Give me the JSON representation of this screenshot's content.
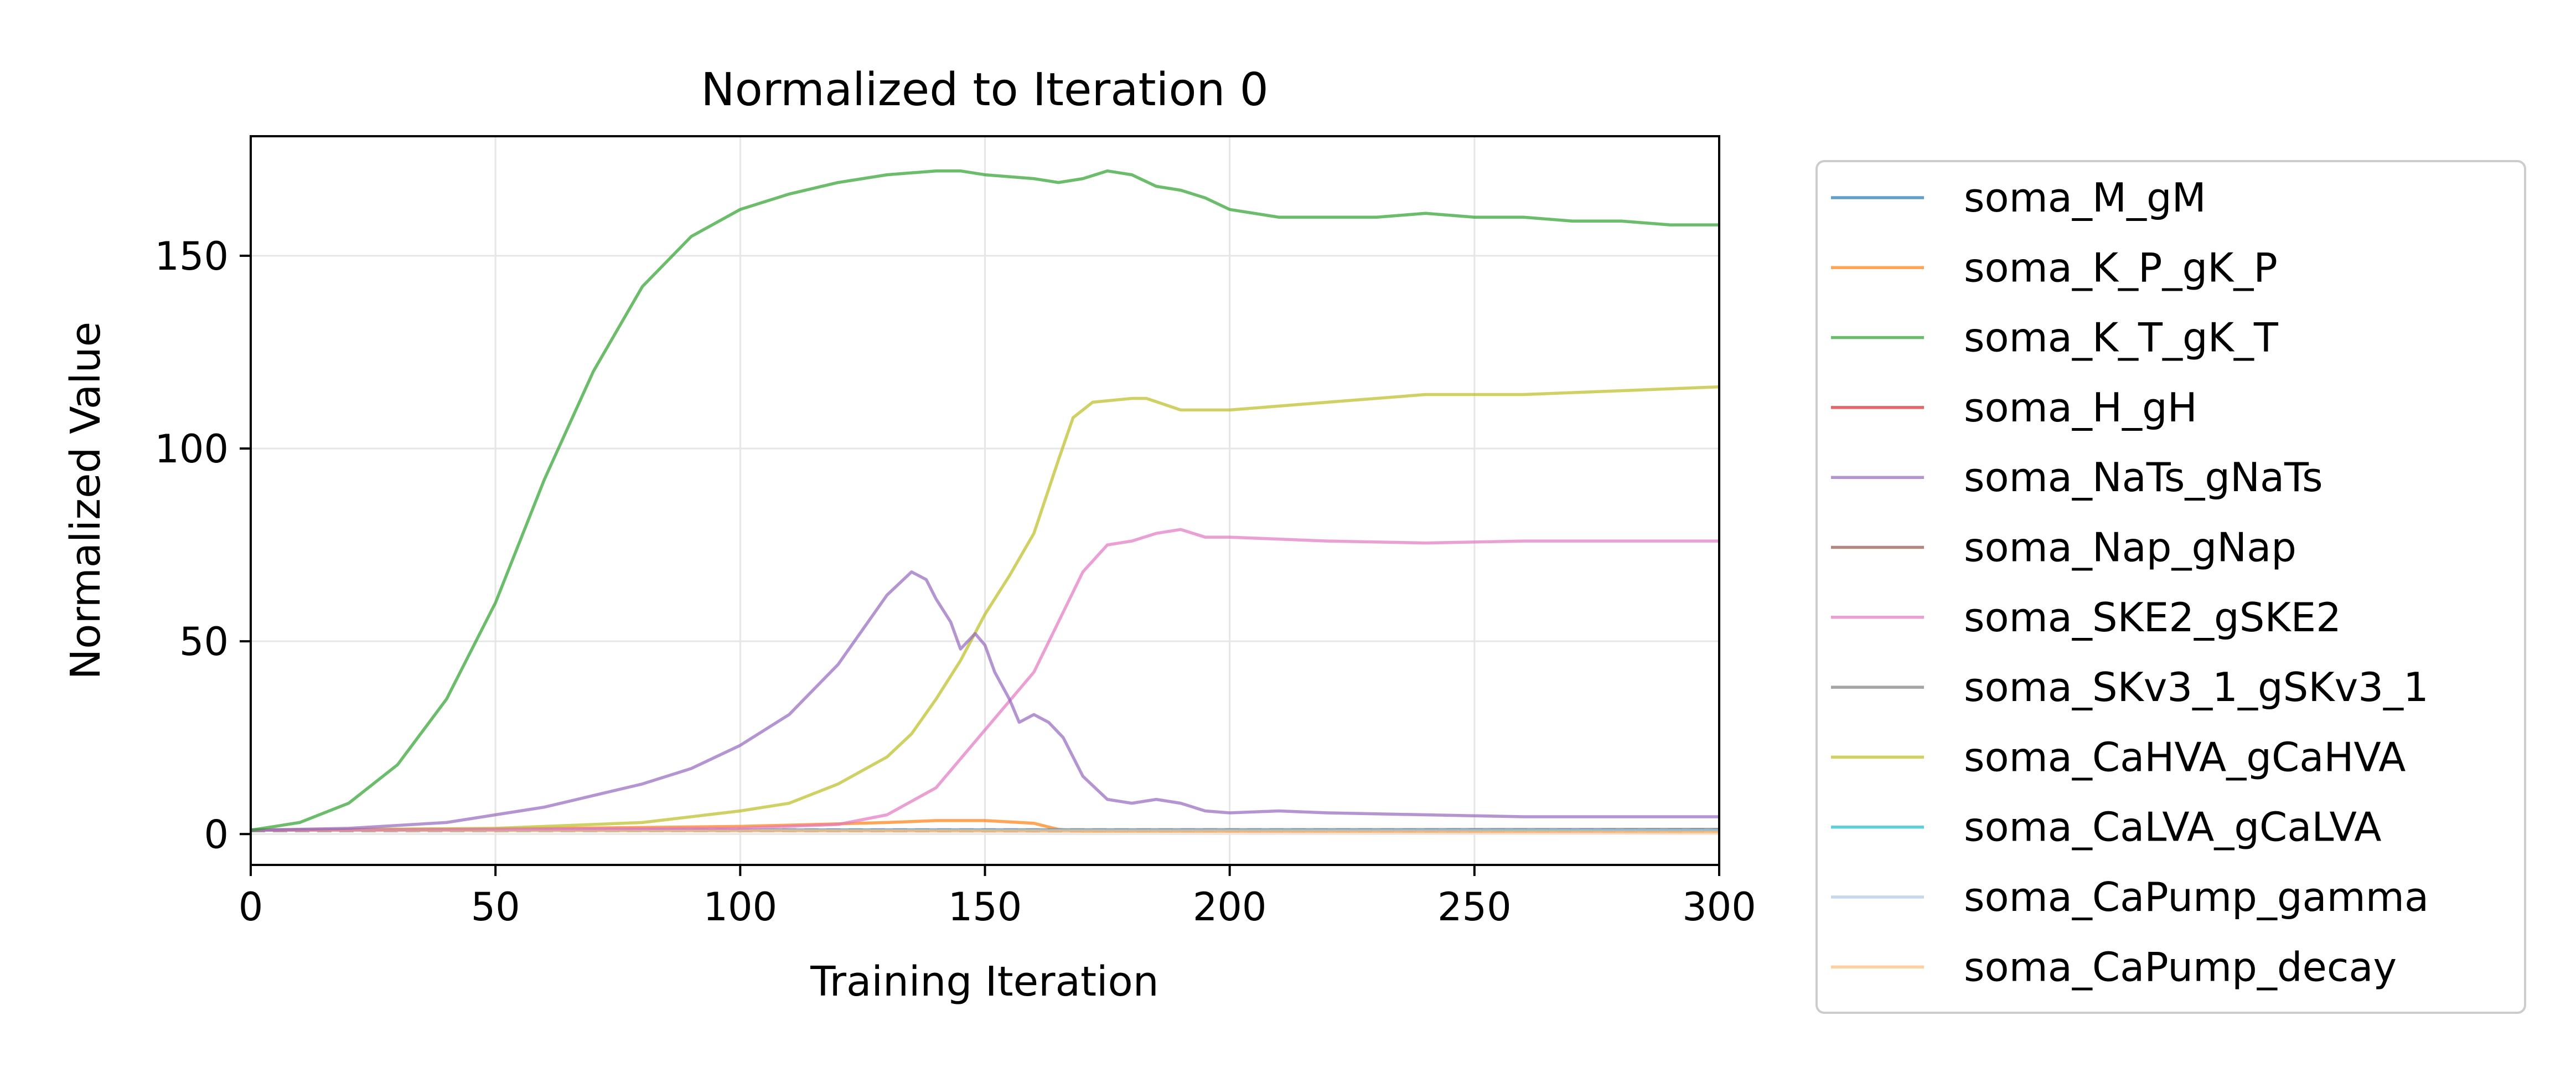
{
  "chart_data": {
    "type": "line",
    "title": "Normalized to Iteration 0",
    "xlabel": "Training Iteration",
    "ylabel": "Normalized Value",
    "xlim": [
      0,
      300
    ],
    "ylim": [
      -8,
      181
    ],
    "x_ticks": [
      0,
      50,
      100,
      150,
      200,
      250,
      300
    ],
    "y_ticks": [
      0,
      50,
      100,
      150
    ],
    "grid": true,
    "legend_position": "outside-right",
    "reference_line": {
      "y": 1,
      "style": "dashed",
      "color": "#808080"
    },
    "series": [
      {
        "name": "soma_M_gM",
        "color": "#1f77b4",
        "points": [
          [
            0,
            1
          ],
          [
            300,
            1
          ]
        ]
      },
      {
        "name": "soma_K_P_gK_P",
        "color": "#ff7f0e",
        "points": [
          [
            0,
            1
          ],
          [
            50,
            1.3
          ],
          [
            100,
            2
          ],
          [
            130,
            3
          ],
          [
            140,
            3.5
          ],
          [
            150,
            3.5
          ],
          [
            160,
            2.8
          ],
          [
            165,
            1.2
          ],
          [
            170,
            0.8
          ],
          [
            200,
            0.8
          ],
          [
            300,
            0.8
          ]
        ]
      },
      {
        "name": "soma_K_T_gK_T",
        "color": "#2ca02c",
        "points": [
          [
            0,
            1
          ],
          [
            10,
            3
          ],
          [
            20,
            8
          ],
          [
            30,
            18
          ],
          [
            40,
            35
          ],
          [
            50,
            60
          ],
          [
            60,
            92
          ],
          [
            70,
            120
          ],
          [
            80,
            142
          ],
          [
            90,
            155
          ],
          [
            100,
            162
          ],
          [
            110,
            166
          ],
          [
            120,
            169
          ],
          [
            130,
            171
          ],
          [
            140,
            172
          ],
          [
            145,
            172
          ],
          [
            150,
            171
          ],
          [
            160,
            170
          ],
          [
            165,
            169
          ],
          [
            170,
            170
          ],
          [
            175,
            172
          ],
          [
            180,
            171
          ],
          [
            185,
            168
          ],
          [
            190,
            167
          ],
          [
            195,
            165
          ],
          [
            200,
            162
          ],
          [
            210,
            160
          ],
          [
            220,
            160
          ],
          [
            230,
            160
          ],
          [
            240,
            161
          ],
          [
            250,
            160
          ],
          [
            260,
            160
          ],
          [
            270,
            159
          ],
          [
            280,
            159
          ],
          [
            290,
            158
          ],
          [
            300,
            158
          ]
        ]
      },
      {
        "name": "soma_H_gH",
        "color": "#d62728",
        "points": [
          [
            0,
            1
          ],
          [
            300,
            1
          ]
        ]
      },
      {
        "name": "soma_NaTs_gNaTs",
        "color": "#9467bd",
        "points": [
          [
            0,
            1
          ],
          [
            20,
            1.5
          ],
          [
            40,
            3
          ],
          [
            60,
            7
          ],
          [
            70,
            10
          ],
          [
            80,
            13
          ],
          [
            90,
            17
          ],
          [
            100,
            23
          ],
          [
            110,
            31
          ],
          [
            120,
            44
          ],
          [
            130,
            62
          ],
          [
            135,
            68
          ],
          [
            138,
            66
          ],
          [
            140,
            61
          ],
          [
            143,
            55
          ],
          [
            145,
            48
          ],
          [
            148,
            52
          ],
          [
            150,
            49
          ],
          [
            152,
            42
          ],
          [
            155,
            35
          ],
          [
            157,
            29
          ],
          [
            160,
            31
          ],
          [
            163,
            29
          ],
          [
            166,
            25
          ],
          [
            170,
            15
          ],
          [
            175,
            9
          ],
          [
            180,
            8
          ],
          [
            185,
            9
          ],
          [
            190,
            8
          ],
          [
            195,
            6
          ],
          [
            200,
            5.5
          ],
          [
            210,
            6
          ],
          [
            220,
            5.5
          ],
          [
            240,
            5
          ],
          [
            260,
            4.5
          ],
          [
            300,
            4.5
          ]
        ]
      },
      {
        "name": "soma_Nap_gNap",
        "color": "#8c564b",
        "points": [
          [
            0,
            1
          ],
          [
            300,
            1.2
          ]
        ]
      },
      {
        "name": "soma_SKE2_gSKE2",
        "color": "#e377c2",
        "points": [
          [
            0,
            1
          ],
          [
            100,
            1.5
          ],
          [
            120,
            2.5
          ],
          [
            130,
            5
          ],
          [
            140,
            12
          ],
          [
            150,
            27
          ],
          [
            160,
            42
          ],
          [
            165,
            55
          ],
          [
            170,
            68
          ],
          [
            175,
            75
          ],
          [
            180,
            76
          ],
          [
            185,
            78
          ],
          [
            190,
            79
          ],
          [
            195,
            77
          ],
          [
            200,
            77
          ],
          [
            220,
            76
          ],
          [
            240,
            75.5
          ],
          [
            260,
            76
          ],
          [
            280,
            76
          ],
          [
            300,
            76
          ]
        ]
      },
      {
        "name": "soma_SKv3_1_gSKv3_1",
        "color": "#7f7f7f",
        "points": [
          [
            0,
            1
          ],
          [
            300,
            1
          ]
        ]
      },
      {
        "name": "soma_CaHVA_gCaHVA",
        "color": "#bcbd22",
        "points": [
          [
            0,
            1
          ],
          [
            50,
            1.5
          ],
          [
            80,
            3
          ],
          [
            100,
            6
          ],
          [
            110,
            8
          ],
          [
            120,
            13
          ],
          [
            130,
            20
          ],
          [
            135,
            26
          ],
          [
            140,
            35
          ],
          [
            145,
            45
          ],
          [
            150,
            57
          ],
          [
            155,
            67
          ],
          [
            160,
            78
          ],
          [
            165,
            97
          ],
          [
            168,
            108
          ],
          [
            172,
            112
          ],
          [
            180,
            113
          ],
          [
            183,
            113
          ],
          [
            190,
            110
          ],
          [
            200,
            110
          ],
          [
            210,
            111
          ],
          [
            220,
            112
          ],
          [
            240,
            114
          ],
          [
            260,
            114
          ],
          [
            280,
            115
          ],
          [
            300,
            116
          ]
        ]
      },
      {
        "name": "soma_CaLVA_gCaLVA",
        "color": "#17becf",
        "points": [
          [
            0,
            1
          ],
          [
            300,
            1
          ]
        ]
      },
      {
        "name": "soma_CaPump_gamma",
        "color": "#aec7e8",
        "points": [
          [
            0,
            1
          ],
          [
            300,
            1
          ]
        ]
      },
      {
        "name": "soma_CaPump_decay",
        "color": "#ffbb78",
        "points": [
          [
            0,
            1
          ],
          [
            300,
            0.5
          ]
        ]
      }
    ]
  }
}
